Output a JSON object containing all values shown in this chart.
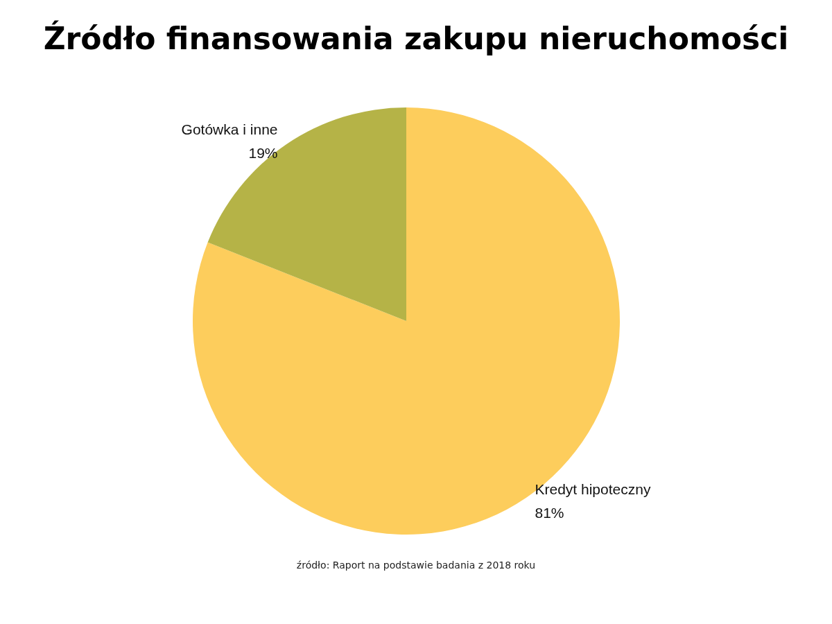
{
  "chart_data": {
    "type": "pie",
    "title": "Źródło finansowania zakupu nieruchomości",
    "categories": [
      "Kredyt hipoteczny",
      "Gotówka i inne"
    ],
    "values": [
      81,
      19
    ],
    "value_labels": [
      "81%",
      "19%"
    ],
    "colors": [
      "#fdcd5c",
      "#b5b347"
    ],
    "annotations": [
      "źródło: Raport na podstawie badania z 2018 roku"
    ],
    "legend": false
  }
}
